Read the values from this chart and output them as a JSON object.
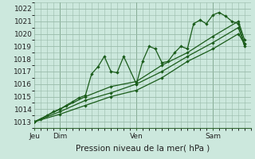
{
  "title": "",
  "xlabel": "Pression niveau de la mer( hPa )",
  "bg_color": "#cce8dd",
  "grid_color": "#99bbaa",
  "line_color": "#1a5c1a",
  "ylim": [
    1012.5,
    1022.5
  ],
  "yticks": [
    1013,
    1014,
    1015,
    1016,
    1017,
    1018,
    1019,
    1020,
    1021,
    1022
  ],
  "line1_x": [
    0.0,
    0.12,
    0.25,
    0.37,
    0.5,
    0.62,
    0.75,
    0.87,
    1.0,
    1.12,
    1.25,
    1.37,
    1.5,
    1.62,
    1.75,
    2.0,
    2.12,
    2.25,
    2.37,
    2.5,
    2.62,
    2.75,
    2.87,
    3.0,
    3.12,
    3.25,
    3.37,
    3.5,
    3.62,
    3.75,
    3.87,
    4.0,
    4.12
  ],
  "line1_y": [
    1013.0,
    1013.2,
    1013.5,
    1013.8,
    1014.0,
    1014.3,
    1014.6,
    1014.9,
    1015.1,
    1016.8,
    1017.4,
    1018.2,
    1017.0,
    1016.9,
    1018.2,
    1016.0,
    1017.8,
    1019.0,
    1018.8,
    1017.7,
    1017.8,
    1018.5,
    1019.0,
    1018.8,
    1020.8,
    1021.1,
    1020.8,
    1021.5,
    1021.7,
    1021.4,
    1021.0,
    1020.8,
    1019.2
  ],
  "line2_x": [
    0.0,
    0.5,
    1.0,
    1.5,
    2.0,
    2.5,
    3.0,
    3.5,
    4.0,
    4.12
  ],
  "line2_y": [
    1013.0,
    1014.0,
    1015.0,
    1015.8,
    1016.2,
    1017.5,
    1018.5,
    1019.8,
    1021.0,
    1019.5
  ],
  "line3_x": [
    0.0,
    0.5,
    1.0,
    1.5,
    2.0,
    2.5,
    3.0,
    3.5,
    4.0,
    4.12
  ],
  "line3_y": [
    1013.0,
    1013.8,
    1014.7,
    1015.3,
    1016.0,
    1017.0,
    1018.2,
    1019.3,
    1020.5,
    1019.0
  ],
  "line4_x": [
    0.0,
    0.5,
    1.0,
    1.5,
    2.0,
    2.5,
    3.0,
    3.5,
    4.0,
    4.12
  ],
  "line4_y": [
    1013.0,
    1013.6,
    1014.3,
    1015.0,
    1015.5,
    1016.5,
    1017.8,
    1018.8,
    1020.0,
    1019.2
  ],
  "xtick_positions": [
    0.0,
    0.5,
    2.0,
    3.5
  ],
  "xtick_labels": [
    "Jeu",
    "Dim",
    "Ven",
    "Sam"
  ],
  "vline_positions": [
    0.5,
    2.0,
    3.5
  ],
  "xlim": [
    0.0,
    4.25
  ]
}
